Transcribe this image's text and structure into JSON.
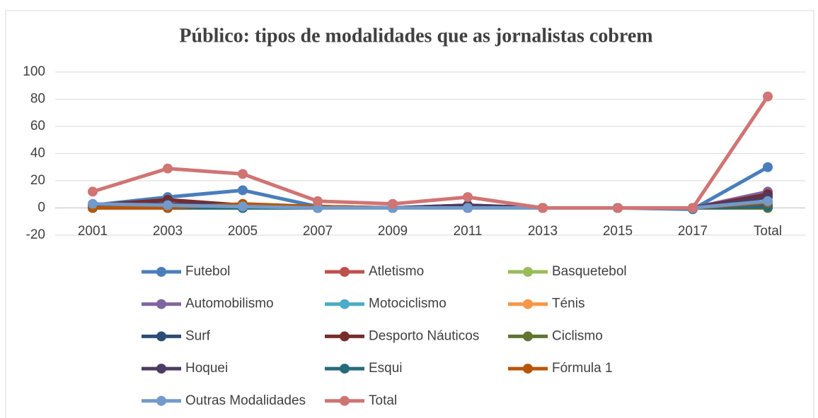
{
  "chart_data": {
    "type": "line",
    "title": "Público: tipos de modalidades que as jornalistas cobrem",
    "categories": [
      "2001",
      "2003",
      "2005",
      "2007",
      "2009",
      "2011",
      "2013",
      "2015",
      "2017",
      "Total"
    ],
    "ylim": [
      -20,
      100
    ],
    "yticks": [
      -20,
      0,
      20,
      40,
      60,
      80,
      100
    ],
    "grid": true,
    "series": [
      {
        "name": "Futebol",
        "color": "#4a7ebb",
        "values": [
          2,
          8,
          13,
          1,
          0,
          0,
          0,
          0,
          -1,
          30
        ]
      },
      {
        "name": "Atletismo",
        "color": "#c0504d",
        "values": [
          0,
          0,
          0,
          0,
          0,
          0,
          0,
          0,
          0,
          2
        ]
      },
      {
        "name": "Basquetebol",
        "color": "#9bbb59",
        "values": [
          0,
          0,
          0,
          0,
          0,
          0,
          0,
          0,
          0,
          0
        ]
      },
      {
        "name": "Automobilismo",
        "color": "#8064a2",
        "values": [
          2,
          3,
          1,
          1,
          0,
          0,
          0,
          0,
          0,
          12
        ]
      },
      {
        "name": "Motociclismo",
        "color": "#4bacc6",
        "values": [
          0,
          0,
          0,
          0,
          0,
          0,
          0,
          0,
          0,
          1
        ]
      },
      {
        "name": "Ténis",
        "color": "#f79646",
        "values": [
          0,
          0,
          0,
          0,
          0,
          0,
          0,
          0,
          0,
          1
        ]
      },
      {
        "name": "Surf",
        "color": "#2c4d75",
        "values": [
          0,
          0,
          0,
          0,
          0,
          2,
          0,
          0,
          0,
          2
        ]
      },
      {
        "name": "Desporto Náuticos",
        "color": "#772c2a",
        "values": [
          2,
          6,
          2,
          0,
          0,
          0,
          0,
          0,
          0,
          10
        ]
      },
      {
        "name": "Ciclismo",
        "color": "#5f7530",
        "values": [
          0,
          0,
          0,
          0,
          0,
          0,
          0,
          0,
          0,
          0
        ]
      },
      {
        "name": "Hoquei",
        "color": "#4d3b62",
        "values": [
          2,
          3,
          2,
          1,
          0,
          2,
          0,
          0,
          0,
          8
        ]
      },
      {
        "name": "Esqui",
        "color": "#276a7c",
        "values": [
          0,
          0,
          0,
          0,
          0,
          0,
          0,
          0,
          0,
          1
        ]
      },
      {
        "name": "Fórmula 1",
        "color": "#b65708",
        "values": [
          0,
          0,
          3,
          1,
          0,
          0,
          0,
          0,
          0,
          4
        ]
      },
      {
        "name": "Outras Modalidades",
        "color": "#729aca",
        "values": [
          3,
          2,
          1,
          0,
          0,
          0,
          0,
          0,
          0,
          5
        ]
      },
      {
        "name": "Total",
        "color": "#d07474",
        "values": [
          12,
          29,
          25,
          5,
          3,
          8,
          0,
          0,
          0,
          82
        ]
      }
    ]
  }
}
